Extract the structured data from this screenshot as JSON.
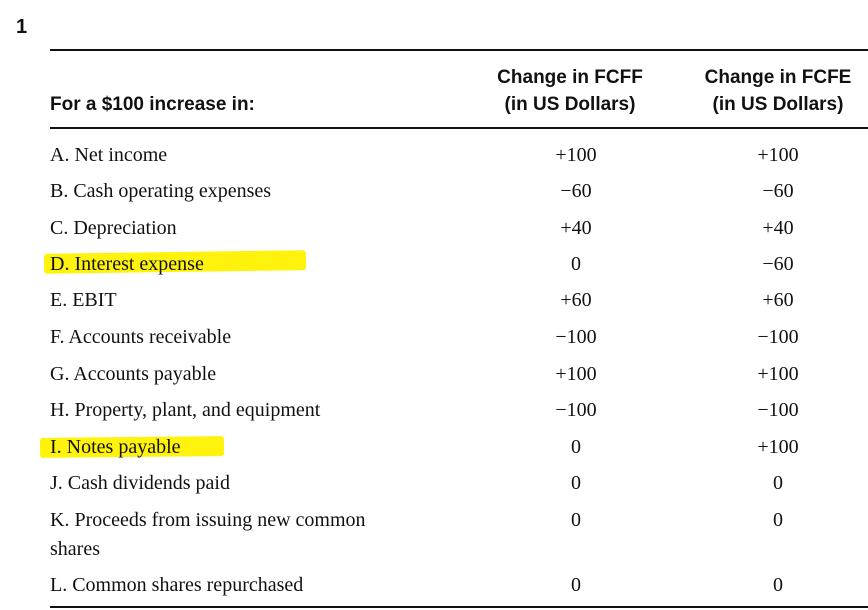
{
  "question_number": "1",
  "table": {
    "header_label": "For a $100 increase in:",
    "col1_line1": "Change in FCFF",
    "col1_line2": "(in US Dollars)",
    "col2_line1": "Change in FCFE",
    "col2_line2": "(in US Dollars)",
    "rows": [
      {
        "label": "A. Net income",
        "fcff": "+100",
        "fcfe": "+100",
        "highlighted": false
      },
      {
        "label": "B. Cash operating expenses",
        "fcff": "−60",
        "fcfe": "−60",
        "highlighted": false
      },
      {
        "label": "C. Depreciation",
        "fcff": "+40",
        "fcfe": "+40",
        "highlighted": false
      },
      {
        "label": "D. Interest expense",
        "fcff": "0",
        "fcfe": "−60",
        "highlighted": true
      },
      {
        "label": "E. EBIT",
        "fcff": "+60",
        "fcfe": "+60",
        "highlighted": false
      },
      {
        "label": "F. Accounts receivable",
        "fcff": "−100",
        "fcfe": "−100",
        "highlighted": false
      },
      {
        "label": "G. Accounts payable",
        "fcff": "+100",
        "fcfe": "+100",
        "highlighted": false
      },
      {
        "label": "H. Property, plant, and equipment",
        "fcff": "−100",
        "fcfe": "−100",
        "highlighted": false
      },
      {
        "label": "I. Notes payable",
        "fcff": "0",
        "fcfe": "+100",
        "highlighted": true
      },
      {
        "label": "J. Cash dividends paid",
        "fcff": "0",
        "fcfe": "0",
        "highlighted": false
      },
      {
        "label": "K. Proceeds from issuing new common",
        "label_line2": "shares",
        "fcff": "0",
        "fcfe": "0",
        "highlighted": false
      },
      {
        "label": "L. Common shares repurchased",
        "fcff": "0",
        "fcfe": "0",
        "highlighted": false
      }
    ]
  },
  "colors": {
    "highlight": "#fff200",
    "text": "#111111",
    "rule": "#111111"
  }
}
